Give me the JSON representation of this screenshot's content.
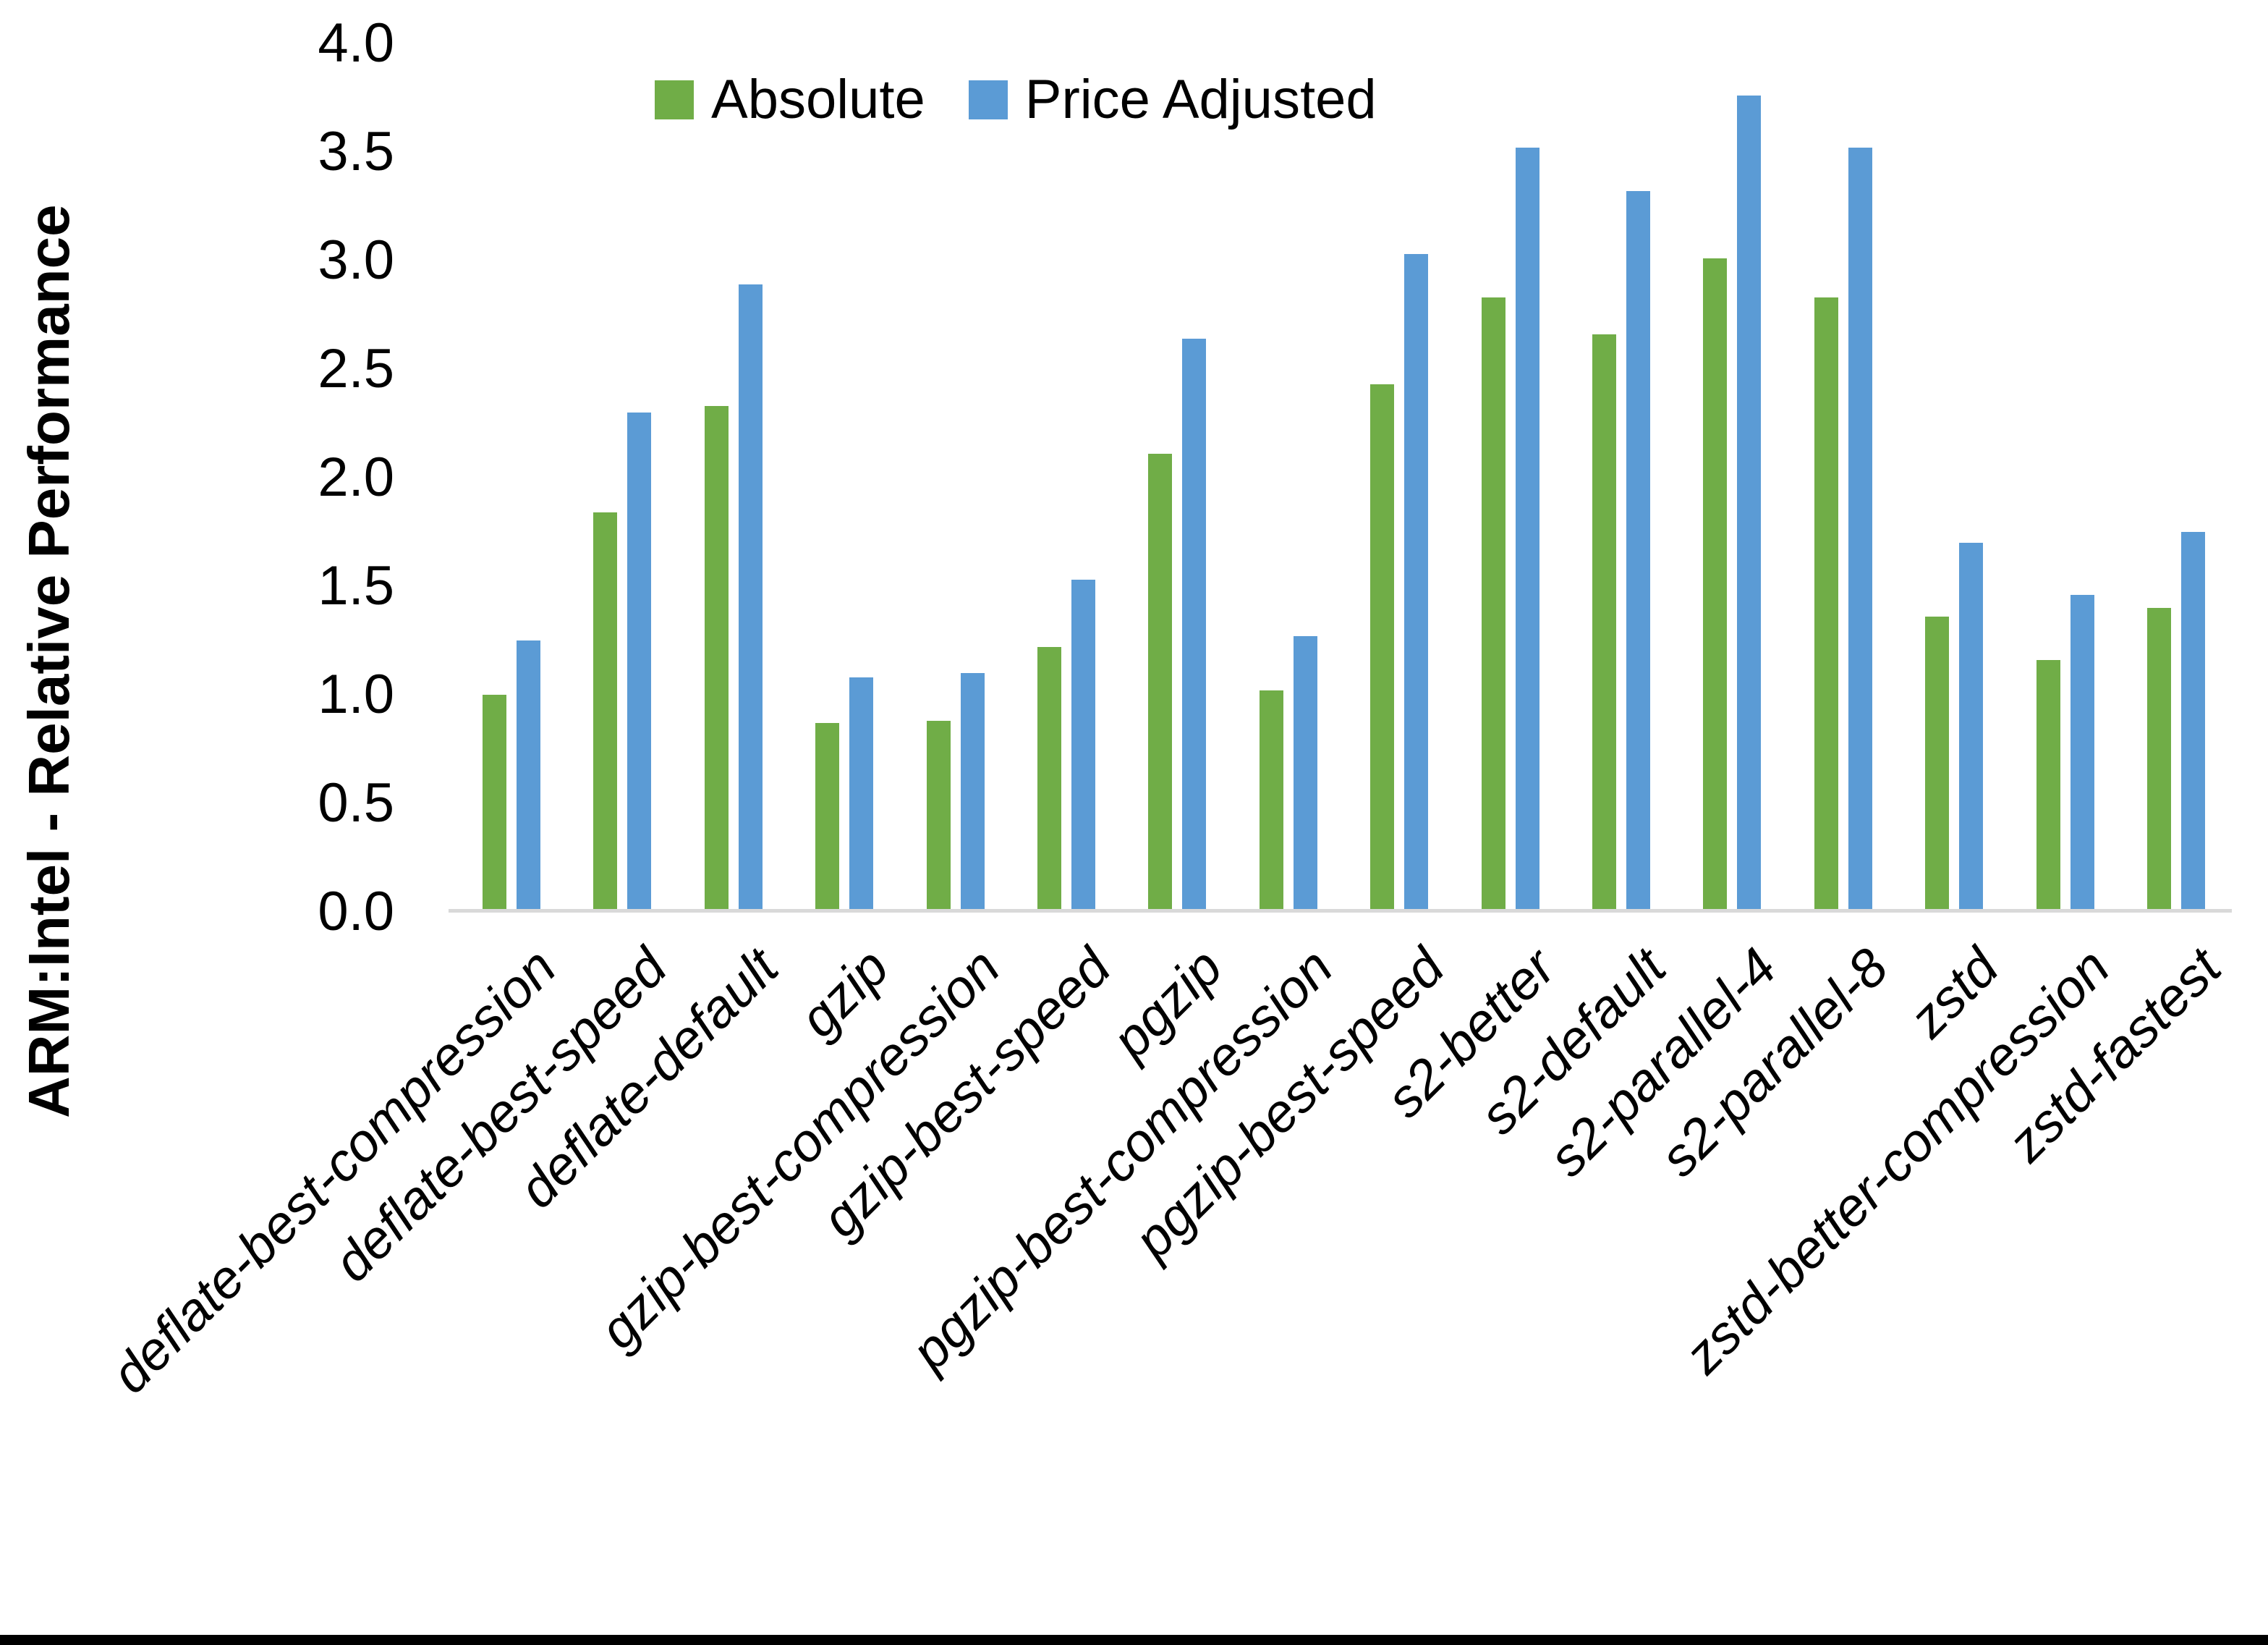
{
  "chart_data": {
    "type": "bar",
    "title": "",
    "xlabel": "",
    "ylabel": "ARM:Intel - Relative Performance",
    "ylim": [
      0.0,
      4.0
    ],
    "ytick_step": 0.5,
    "ytick_labels": [
      "0.0",
      "0.5",
      "1.0",
      "1.5",
      "2.0",
      "2.5",
      "3.0",
      "3.5",
      "4.0"
    ],
    "grid": false,
    "legend_position": "top-center",
    "categories": [
      "deflate-best-compression",
      "deflate-best-speed",
      "deflate-default",
      "gzip",
      "gzip-best-compression",
      "gzip-best-speed",
      "pgzip",
      "pgzip-best-compression",
      "pgzip-best-speed",
      "s2-better",
      "s2-default",
      "s2-parallel-4",
      "s2-parallel-8",
      "zstd",
      "zstd-better-compression",
      "zstd-fastest"
    ],
    "series": [
      {
        "name": "Absolute",
        "color": "#70AD47",
        "values": [
          1.0,
          1.84,
          2.33,
          0.87,
          0.88,
          1.22,
          2.11,
          1.02,
          2.43,
          2.83,
          2.66,
          3.01,
          2.83,
          1.36,
          1.16,
          1.4
        ]
      },
      {
        "name": "Price Adjusted",
        "color": "#5B9BD5",
        "values": [
          1.25,
          2.3,
          2.89,
          1.08,
          1.1,
          1.53,
          2.64,
          1.27,
          3.03,
          3.52,
          3.32,
          3.76,
          3.52,
          1.7,
          1.46,
          1.75
        ]
      }
    ]
  },
  "colors": {
    "background": "#FFFFFF",
    "axis_line": "#D9D9D9",
    "text": "#000000",
    "bottom_bar": "#000000"
  }
}
